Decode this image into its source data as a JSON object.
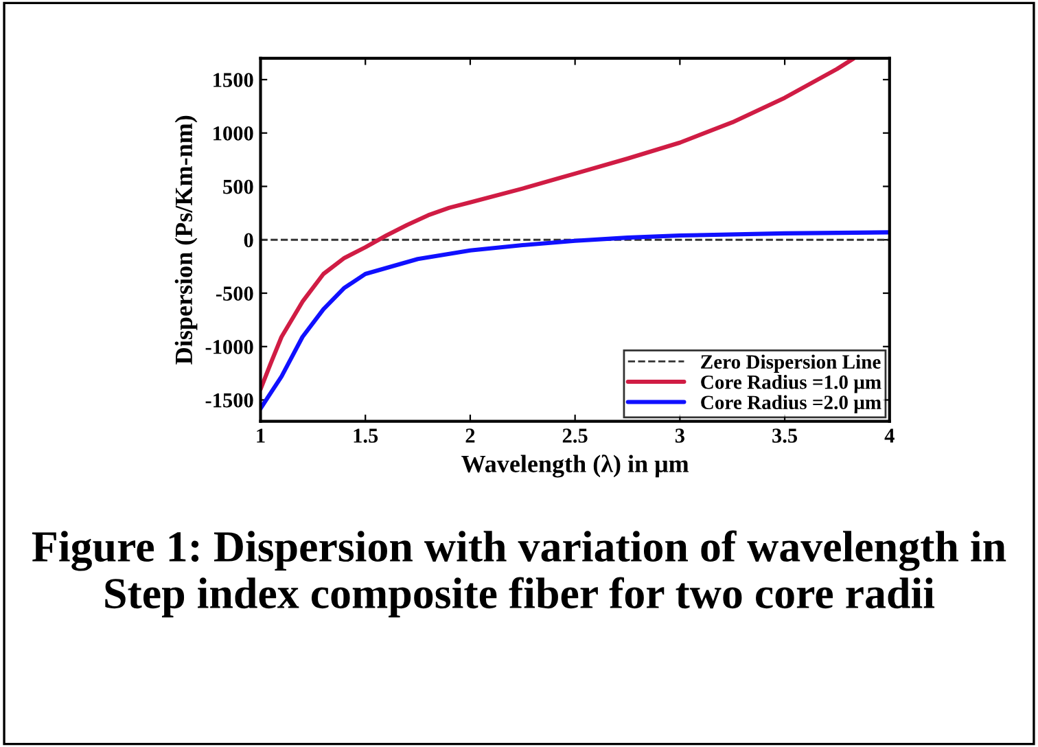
{
  "chart_data": {
    "type": "line",
    "title": "Figure 1: Dispersion with variation of wavelength in Step index composite fiber for two core radii",
    "xlabel": "Wavelength (λ) in μm",
    "ylabel": "Dispersion (Ps/Km-nm)",
    "xlim": [
      1,
      4
    ],
    "ylim": [
      -1700,
      1700
    ],
    "xticks": [
      1,
      1.5,
      2,
      2.5,
      3,
      3.5,
      4
    ],
    "yticks": [
      -1500,
      -1000,
      -500,
      0,
      500,
      1000,
      1500
    ],
    "grid": false,
    "legend": "bottom right",
    "line_style": "solid",
    "ref_lines": [
      {
        "axis": "y",
        "value": 0,
        "label": "Zero Dispersion Line",
        "color": "#333333",
        "line_style": "dashed"
      }
    ],
    "series": [
      {
        "name": "Core Radius =1.0 μm",
        "color": "#d01c44",
        "x": [
          1,
          1.05,
          1.1,
          1.2,
          1.3,
          1.4,
          1.5,
          1.6,
          1.7,
          1.8,
          1.9,
          2,
          2.25,
          2.5,
          2.75,
          3,
          3.25,
          3.5,
          3.75,
          3.83
        ],
        "values": [
          -1400,
          -1150,
          -910,
          -580,
          -320,
          -170,
          -70,
          40,
          140,
          230,
          300,
          350,
          480,
          620,
          760,
          910,
          1100,
          1330,
          1600,
          1700
        ]
      },
      {
        "name": "Core Radius =2.0 μm",
        "color": "#1010ff",
        "x": [
          1,
          1.05,
          1.1,
          1.2,
          1.3,
          1.4,
          1.5,
          1.75,
          2,
          2.25,
          2.5,
          2.75,
          3,
          3.5,
          4
        ],
        "values": [
          -1580,
          -1430,
          -1280,
          -910,
          -650,
          -450,
          -320,
          -180,
          -100,
          -50,
          -10,
          20,
          40,
          60,
          70
        ]
      }
    ]
  }
}
